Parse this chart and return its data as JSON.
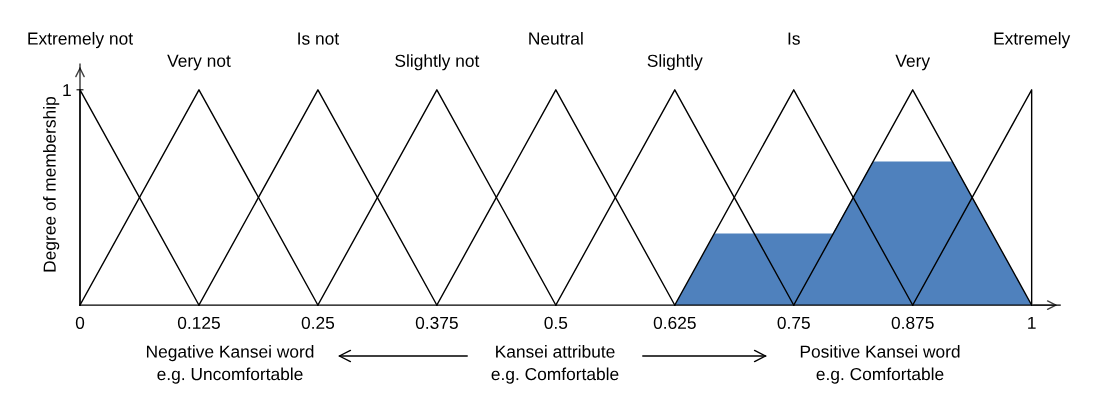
{
  "chart_data": {
    "type": "line",
    "ylabel": "Degree of membership",
    "xlim": [
      0,
      1.03
    ],
    "ylim": [
      0,
      1.12
    ],
    "xticks": [
      0,
      0.125,
      0.25,
      0.375,
      0.5,
      0.625,
      0.75,
      0.875,
      1
    ],
    "yticks": [
      1
    ],
    "grid": false,
    "legend": false,
    "marker": "none",
    "line_style": "solid",
    "series": [
      {
        "type": "area",
        "color": "#4f81bd",
        "x": [
          0.625,
          0.667,
          0.791,
          0.833,
          0.917,
          1
        ],
        "values": [
          0,
          0.333,
          0.333,
          0.667,
          0.667,
          0
        ]
      },
      {
        "name": "Extremely not",
        "color": "#000000",
        "x": [
          0,
          0,
          0.125
        ],
        "values": [
          0,
          1,
          0
        ]
      },
      {
        "name": "Very not",
        "color": "#000000",
        "x": [
          0,
          0.125,
          0.25
        ],
        "values": [
          0,
          1,
          0
        ]
      },
      {
        "name": "Is not",
        "color": "#000000",
        "x": [
          0.125,
          0.25,
          0.375
        ],
        "values": [
          0,
          1,
          0
        ]
      },
      {
        "name": "Slightly not",
        "color": "#000000",
        "x": [
          0.25,
          0.375,
          0.5
        ],
        "values": [
          0,
          1,
          0
        ]
      },
      {
        "name": "Neutral",
        "color": "#000000",
        "x": [
          0.375,
          0.5,
          0.625
        ],
        "values": [
          0,
          1,
          0
        ]
      },
      {
        "name": "Slightly",
        "color": "#000000",
        "x": [
          0.5,
          0.625,
          0.75
        ],
        "values": [
          0,
          1,
          0
        ]
      },
      {
        "name": "Is",
        "color": "#000000",
        "x": [
          0.625,
          0.75,
          0.875
        ],
        "values": [
          0,
          1,
          0
        ]
      },
      {
        "name": "Very",
        "color": "#000000",
        "x": [
          0.75,
          0.875,
          1
        ],
        "values": [
          0,
          1,
          0
        ]
      },
      {
        "name": "Extremely",
        "color": "#000000",
        "x": [
          0.875,
          1,
          1
        ],
        "values": [
          0,
          1,
          0
        ]
      }
    ],
    "annotations": [
      "Negative Kansei word\ne.g. Uncomfortable",
      "Kansei attribute\ne.g. Comfortable",
      "Positive Kansei word\ne.g. Comfortable"
    ]
  }
}
